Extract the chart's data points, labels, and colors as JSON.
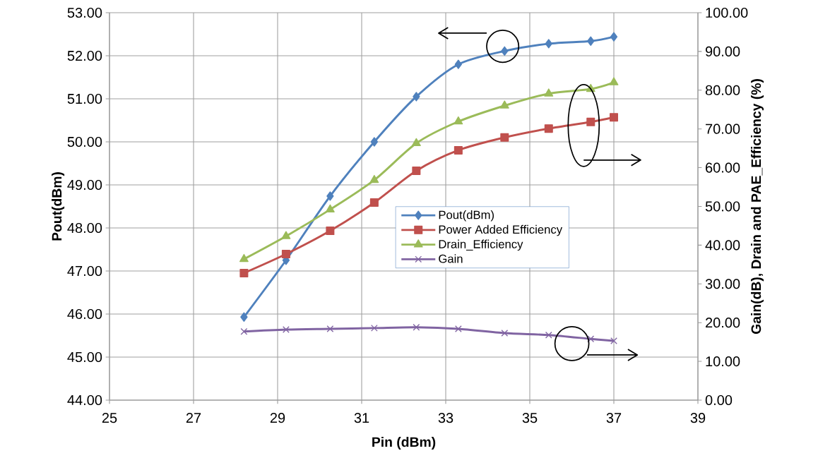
{
  "chart_data": {
    "type": "line",
    "xlabel": "Pin (dBm)",
    "ylabel": "Pout(dBm)",
    "y2label": "Gain(dB),  Drain and PAE_Efficiency  (%)",
    "x": [
      28.2,
      29.2,
      30.25,
      31.3,
      32.3,
      33.3,
      34.4,
      35.45,
      36.45,
      37
    ],
    "series": [
      {
        "name": "Pout(dBm)",
        "color": "#4f81bd",
        "marker": "diamond",
        "values": [
          45.93,
          47.25,
          48.74,
          50.0,
          51.05,
          51.8,
          52.11,
          52.28,
          52.34,
          52.44
        ]
      },
      {
        "name": "Power Added Efficiency",
        "color": "#c0504d",
        "marker": "square",
        "axis": "y2",
        "values": [
          32.8,
          37.7,
          43.7,
          51.0,
          59.2,
          64.5,
          67.8,
          70.1,
          71.8,
          73.0
        ]
      },
      {
        "name": "Drain_Efficiency",
        "color": "#9bbb59",
        "marker": "triangle",
        "axis": "y2",
        "values": [
          36.4,
          42.3,
          49.2,
          56.8,
          66.3,
          71.9,
          76.0,
          79.1,
          80.3,
          82.0
        ]
      },
      {
        "name": "Gain",
        "color": "#8064a2",
        "marker": "cross",
        "axis": "y2",
        "values": [
          17.7,
          18.2,
          18.4,
          18.6,
          18.8,
          18.4,
          17.3,
          16.8,
          15.8,
          15.3
        ]
      }
    ],
    "xlim": [
      25,
      39
    ],
    "xticks": [
      25,
      27,
      29,
      31,
      33,
      35,
      37,
      39
    ],
    "ylim": [
      44,
      53
    ],
    "yticks": [
      {
        "value": 44,
        "label": "44.00"
      },
      {
        "value": 45,
        "label": "45.00"
      },
      {
        "value": 46,
        "label": "46.00"
      },
      {
        "value": 47,
        "label": "47.00"
      },
      {
        "value": 48,
        "label": "48.00"
      },
      {
        "value": 49,
        "label": "49.00"
      },
      {
        "value": 50,
        "label": "50.00"
      },
      {
        "value": 51,
        "label": "51.00"
      },
      {
        "value": 52,
        "label": "52.00"
      },
      {
        "value": 53,
        "label": "53.00"
      }
    ],
    "y2lim": [
      0,
      100
    ],
    "y2ticks": [
      {
        "value": 0,
        "label": "0.00"
      },
      {
        "value": 10,
        "label": "10.00"
      },
      {
        "value": 20,
        "label": "20.00"
      },
      {
        "value": 30,
        "label": "30.00"
      },
      {
        "value": 40,
        "label": "40.00"
      },
      {
        "value": 50,
        "label": "50.00"
      },
      {
        "value": 60,
        "label": "60.00"
      },
      {
        "value": 70,
        "label": "70.00"
      },
      {
        "value": 80,
        "label": "80.00"
      },
      {
        "value": 90,
        "label": "90.00"
      },
      {
        "value": 100,
        "label": "100.00"
      }
    ],
    "grid": true,
    "legend": "center"
  }
}
